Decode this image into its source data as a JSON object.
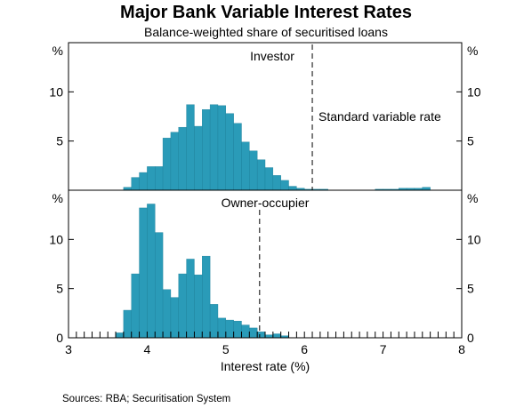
{
  "chart_data": {
    "type": "bar",
    "title": "Major Bank Variable Interest Rates",
    "subtitle": "Balance-weighted share of securitised loans",
    "xlabel": "Interest rate (%)",
    "xlim": [
      3,
      8
    ],
    "x_ticks": [
      "3",
      "4",
      "5",
      "6",
      "7",
      "8"
    ],
    "bin_width": 0.1,
    "source": "Sources: RBA; Securitisation System",
    "colors": {
      "bar": "#2a9bb8",
      "bar_edge": "#1b7f99",
      "axis": "#000000",
      "reference_line": "#000000"
    },
    "panels": [
      {
        "name": "Investor",
        "ylabel_left": "%",
        "ylabel_right": "%",
        "ylim": [
          0,
          15
        ],
        "y_ticks": [
          "5",
          "10"
        ],
        "reference_line": {
          "x": 6.1,
          "label": "Standard variable rate"
        },
        "bin_starts": [
          3.7,
          3.8,
          3.9,
          4.0,
          4.1,
          4.2,
          4.3,
          4.4,
          4.5,
          4.6,
          4.7,
          4.8,
          4.9,
          5.0,
          5.1,
          5.2,
          5.3,
          5.4,
          5.5,
          5.6,
          5.7,
          5.8,
          5.9,
          6.0,
          6.1,
          6.2,
          6.9,
          7.0,
          7.1,
          7.2,
          7.3,
          7.4,
          7.5
        ],
        "values": [
          0.3,
          1.3,
          1.8,
          2.4,
          2.4,
          5.3,
          5.9,
          6.4,
          8.7,
          6.5,
          8.2,
          8.7,
          8.6,
          7.8,
          6.8,
          4.9,
          4.0,
          3.1,
          2.3,
          1.5,
          1.0,
          0.4,
          0.2,
          0.1,
          0.1,
          0.1,
          0.1,
          0.1,
          0.1,
          0.2,
          0.2,
          0.2,
          0.3
        ]
      },
      {
        "name": "Owner-occupier",
        "ylabel_left": "%",
        "ylabel_right": "%",
        "ylim": [
          0,
          15
        ],
        "y_ticks": [
          "0",
          "5",
          "10"
        ],
        "reference_line": {
          "x": 5.43,
          "label": ""
        },
        "bin_starts": [
          3.6,
          3.7,
          3.8,
          3.9,
          4.0,
          4.1,
          4.2,
          4.3,
          4.4,
          4.5,
          4.6,
          4.7,
          4.8,
          4.9,
          5.0,
          5.1,
          5.2,
          5.3,
          5.4,
          5.5,
          5.6,
          5.7
        ],
        "values": [
          0.5,
          2.8,
          6.5,
          13.2,
          13.6,
          10.7,
          4.9,
          4.1,
          6.5,
          8.0,
          6.4,
          8.3,
          3.4,
          2.0,
          1.8,
          1.7,
          1.3,
          1.0,
          0.6,
          0.3,
          0.4,
          0.2
        ]
      }
    ]
  }
}
